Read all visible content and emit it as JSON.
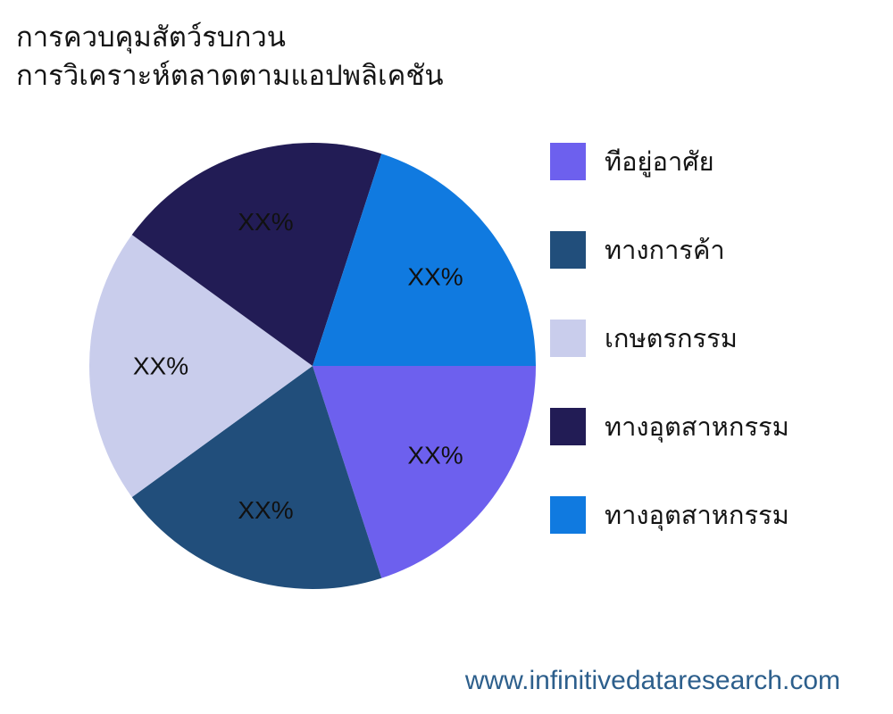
{
  "title": {
    "line1": "การควบคุมสัตว์รบกวน",
    "line2": "การวิเคราะห์ตลาดตามแอปพลิเคชัน"
  },
  "chart_data": {
    "type": "pie",
    "title": "การควบคุมสัตว์รบกวน การวิเคราะห์ตลาดตามแอปพลิเคชัน",
    "unit": "percent",
    "start_angle_deg": 0,
    "direction": "clockwise",
    "legend_position": "right",
    "label_radius_fraction": 0.68,
    "slices": [
      {
        "label": "ทีอยู่อาศัย",
        "value": 20,
        "value_label": "XX%",
        "color": "#6D60EE"
      },
      {
        "label": "ทางการค้า",
        "value": 20,
        "value_label": "XX%",
        "color": "#214E7B"
      },
      {
        "label": "เกษตรกรรม",
        "value": 20,
        "value_label": "XX%",
        "color": "#C9CDEC"
      },
      {
        "label": "ทางอุตสาหกรรม",
        "value": 20,
        "value_label": "XX%",
        "color": "#221C55"
      },
      {
        "label": "ทางอุตสาหกรรม",
        "value": 20,
        "value_label": "XX%",
        "color": "#107AE0"
      }
    ]
  },
  "footer": {
    "website": "www.infinitivedataresearch.com"
  }
}
